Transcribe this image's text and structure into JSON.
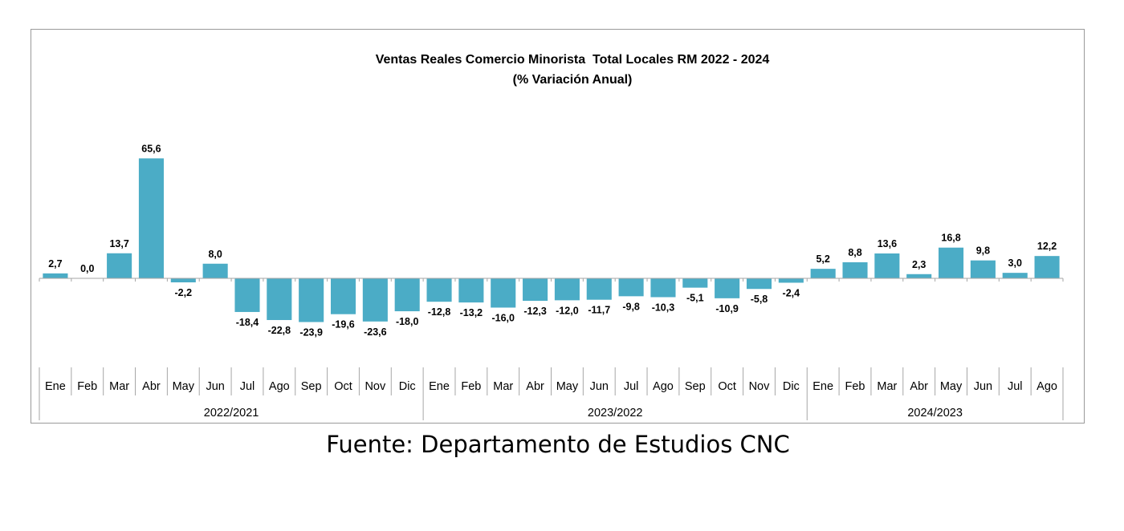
{
  "source_text": "Fuente: Departamento de Estudios CNC",
  "chart_data": {
    "type": "bar",
    "title": "Ventas Reales Comercio Minorista  Total Locales RM 2022 - 2024",
    "subtitle": "(% Variación Anual)",
    "bar_color": "#4bacc6",
    "categories": [
      "Ene",
      "Feb",
      "Mar",
      "Abr",
      "May",
      "Jun",
      "Jul",
      "Ago",
      "Sep",
      "Oct",
      "Nov",
      "Dic",
      "Ene",
      "Feb",
      "Mar",
      "Abr",
      "May",
      "Jun",
      "Jul",
      "Ago",
      "Sep",
      "Oct",
      "Nov",
      "Dic",
      "Ene",
      "Feb",
      "Mar",
      "Abr",
      "May",
      "Jun",
      "Jul",
      "Ago"
    ],
    "values": [
      2.7,
      0.0,
      13.7,
      65.6,
      -2.2,
      8.0,
      -18.4,
      -22.8,
      -23.9,
      -19.6,
      -23.6,
      -18.0,
      -12.8,
      -13.2,
      -16.0,
      -12.3,
      -12.0,
      -11.7,
      -9.8,
      -10.3,
      -5.1,
      -10.9,
      -5.8,
      -2.4,
      5.2,
      8.8,
      13.6,
      2.3,
      16.8,
      9.8,
      3.0,
      12.2
    ],
    "value_labels": [
      "2,7",
      "0,0",
      "13,7",
      "65,6",
      "-2,2",
      "8,0",
      "-18,4",
      "-22,8",
      "-23,9",
      "-19,6",
      "-23,6",
      "-18,0",
      "-12,8",
      "-13,2",
      "-16,0",
      "-12,3",
      "-12,0",
      "-11,7",
      "-9,8",
      "-10,3",
      "-5,1",
      "-10,9",
      "-5,8",
      "-2,4",
      "5,2",
      "8,8",
      "13,6",
      "2,3",
      "16,8",
      "9,8",
      "3,0",
      "12,2"
    ],
    "groups": [
      {
        "label": "2022/2021",
        "start": 0,
        "count": 12
      },
      {
        "label": "2023/2022",
        "start": 12,
        "count": 12
      },
      {
        "label": "2024/2023",
        "start": 24,
        "count": 8
      }
    ],
    "grid": false,
    "legend": "none"
  }
}
